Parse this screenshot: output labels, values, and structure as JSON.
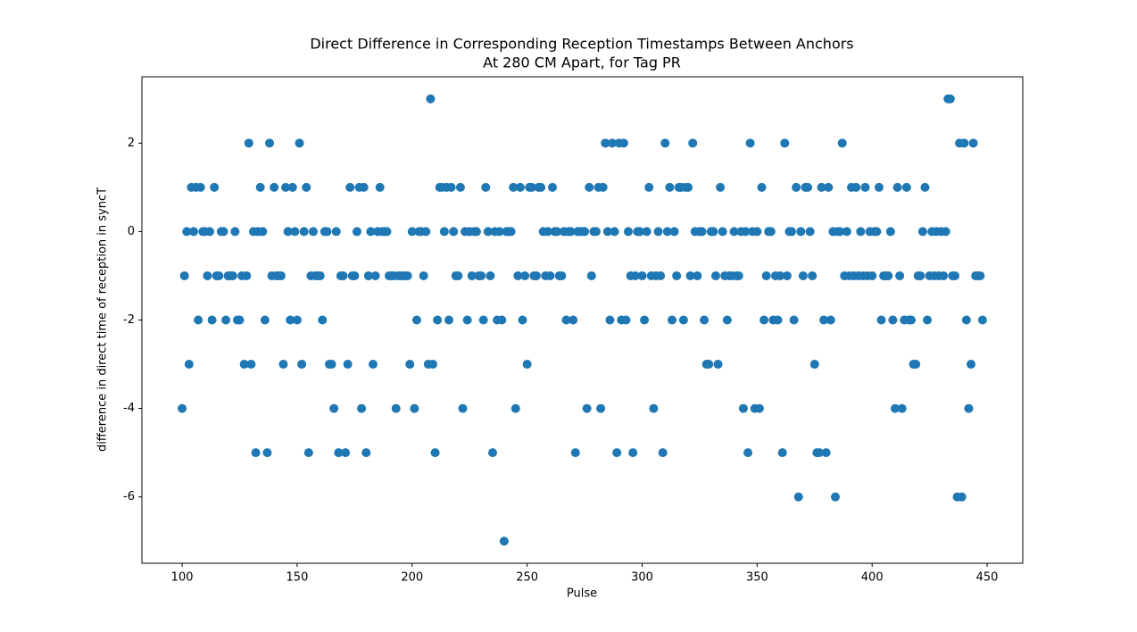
{
  "chart_data": {
    "type": "scatter",
    "title": "Direct Difference in Corresponding Reception Timestamps Between Anchors",
    "subtitle": "At 280 CM Apart, for Tag PR",
    "x_label": "Pulse",
    "y_label": "difference in direct time of reception in syncT",
    "color": "#1f77b4",
    "grid": false,
    "xlim": [
      82.5,
      465.5
    ],
    "ylim": [
      -7.5,
      3.5
    ],
    "xticks": [
      100,
      150,
      200,
      250,
      300,
      350,
      400,
      450
    ],
    "yticks": [
      -6,
      -4,
      -2,
      0,
      2
    ],
    "x": [
      100,
      101,
      102,
      103,
      104,
      105,
      106,
      107,
      108,
      109,
      110,
      111,
      112,
      113,
      114,
      115,
      116,
      117,
      118,
      119,
      120,
      121,
      122,
      123,
      124,
      125,
      126,
      127,
      128,
      129,
      130,
      131,
      132,
      133,
      134,
      135,
      136,
      137,
      138,
      139,
      140,
      141,
      142,
      143,
      144,
      145,
      146,
      147,
      148,
      149,
      150,
      151,
      152,
      153,
      154,
      155,
      156,
      157,
      158,
      159,
      160,
      161,
      162,
      163,
      164,
      165,
      166,
      167,
      168,
      169,
      170,
      171,
      172,
      173,
      174,
      175,
      176,
      177,
      178,
      179,
      180,
      181,
      182,
      183,
      184,
      185,
      186,
      187,
      188,
      189,
      190,
      191,
      192,
      193,
      194,
      195,
      196,
      197,
      198,
      199,
      200,
      201,
      202,
      203,
      204,
      205,
      206,
      207,
      208,
      209,
      210,
      211,
      212,
      213,
      214,
      215,
      216,
      217,
      218,
      219,
      220,
      221,
      222,
      223,
      224,
      225,
      226,
      227,
      228,
      229,
      230,
      231,
      232,
      233,
      234,
      235,
      236,
      237,
      238,
      239,
      240,
      241,
      242,
      243,
      244,
      245,
      246,
      247,
      248,
      249,
      250,
      251,
      252,
      253,
      254,
      255,
      256,
      257,
      258,
      259,
      260,
      261,
      262,
      263,
      264,
      265,
      266,
      267,
      268,
      269,
      270,
      271,
      272,
      273,
      274,
      275,
      276,
      277,
      278,
      279,
      280,
      281,
      282,
      283,
      284,
      285,
      286,
      287,
      288,
      289,
      290,
      291,
      292,
      293,
      294,
      295,
      296,
      297,
      298,
      299,
      300,
      301,
      302,
      303,
      304,
      305,
      306,
      307,
      308,
      309,
      310,
      311,
      312,
      313,
      314,
      315,
      316,
      317,
      318,
      319,
      320,
      321,
      322,
      323,
      324,
      325,
      326,
      327,
      328,
      329,
      330,
      331,
      332,
      333,
      334,
      335,
      336,
      337,
      338,
      339,
      340,
      341,
      342,
      343,
      344,
      345,
      346,
      347,
      348,
      349,
      350,
      351,
      352,
      353,
      354,
      355,
      356,
      357,
      358,
      359,
      360,
      361,
      362,
      363,
      364,
      365,
      366,
      367,
      368,
      369,
      370,
      371,
      372,
      373,
      374,
      375,
      376,
      377,
      378,
      379,
      380,
      381,
      382,
      383,
      384,
      385,
      386,
      387,
      388,
      389,
      390,
      391,
      392,
      393,
      394,
      395,
      396,
      397,
      398,
      399,
      400,
      401,
      402,
      403,
      404,
      405,
      406,
      407,
      408,
      409,
      410,
      411,
      412,
      413,
      414,
      415,
      416,
      417,
      418,
      419,
      420,
      421,
      422,
      423,
      424,
      425,
      426,
      427,
      428,
      429,
      430,
      431,
      432,
      433,
      434,
      435,
      436,
      437,
      438,
      439,
      440,
      441,
      442,
      443,
      444,
      445,
      446,
      447,
      448
    ],
    "values": [
      -4,
      -1,
      0,
      -3,
      1,
      0,
      1,
      -2,
      1,
      0,
      0,
      -1,
      0,
      -2,
      1,
      -1,
      -1,
      0,
      0,
      -2,
      -1,
      -1,
      -1,
      0,
      -2,
      -2,
      -1,
      -3,
      -1,
      2,
      -3,
      0,
      -5,
      0,
      1,
      0,
      -2,
      -5,
      2,
      -1,
      1,
      -1,
      -1,
      -1,
      -3,
      1,
      0,
      -2,
      1,
      0,
      -2,
      2,
      -3,
      0,
      1,
      -5,
      -1,
      0,
      -1,
      -1,
      -1,
      -2,
      0,
      0,
      -3,
      -3,
      -4,
      0,
      -5,
      -1,
      -1,
      -5,
      -3,
      1,
      -1,
      -1,
      0,
      1,
      -4,
      1,
      -5,
      -1,
      0,
      -3,
      -1,
      0,
      1,
      0,
      0,
      0,
      -1,
      -1,
      -1,
      -4,
      -1,
      -1,
      -1,
      -1,
      -1,
      -3,
      0,
      -4,
      -2,
      0,
      0,
      -1,
      0,
      -3,
      3,
      -3,
      -5,
      -2,
      1,
      1,
      0,
      1,
      -2,
      1,
      0,
      -1,
      -1,
      1,
      -4,
      0,
      -2,
      0,
      -1,
      0,
      0,
      -1,
      -1,
      -2,
      1,
      0,
      -1,
      -5,
      0,
      -2,
      0,
      -2,
      -7,
      0,
      0,
      0,
      1,
      -4,
      -1,
      1,
      -2,
      -1,
      -3,
      1,
      1,
      -1,
      -1,
      1,
      1,
      0,
      -1,
      0,
      -1,
      1,
      0,
      0,
      -1,
      -1,
      0,
      -2,
      0,
      0,
      -2,
      -5,
      0,
      0,
      0,
      0,
      -4,
      1,
      -1,
      0,
      0,
      1,
      -4,
      1,
      2,
      0,
      -2,
      2,
      0,
      -5,
      2,
      -2,
      2,
      -2,
      0,
      -1,
      -5,
      -1,
      0,
      0,
      -1,
      -2,
      0,
      1,
      -1,
      -4,
      -1,
      0,
      -1,
      -5,
      2,
      0,
      1,
      -2,
      0,
      -1,
      1,
      1,
      -2,
      1,
      1,
      -1,
      2,
      0,
      -1,
      0,
      0,
      -2,
      -3,
      -3,
      0,
      0,
      -1,
      -3,
      1,
      0,
      -1,
      -2,
      -1,
      -1,
      0,
      -1,
      -1,
      0,
      -4,
      0,
      -5,
      2,
      0,
      -4,
      0,
      -4,
      1,
      -2,
      -1,
      0,
      0,
      -2,
      -1,
      -2,
      -1,
      -5,
      2,
      -1,
      0,
      0,
      -2,
      1,
      -6,
      0,
      -1,
      1,
      1,
      0,
      -1,
      -3,
      -5,
      -5,
      1,
      -2,
      -5,
      1,
      -2,
      0,
      -6,
      0,
      0,
      2,
      -1,
      0,
      -1,
      1,
      -1,
      1,
      -1,
      0,
      -1,
      1,
      -1,
      0,
      -1,
      0,
      0,
      1,
      -2,
      -1,
      -1,
      -1,
      0,
      -2,
      -4,
      1,
      -1,
      -4,
      -2,
      1,
      -2,
      -2,
      -3,
      -3,
      -1,
      -1,
      0,
      1,
      -2,
      -1,
      0,
      -1,
      0,
      -1,
      0,
      -1,
      0,
      3,
      3,
      -1,
      -1,
      -6,
      2,
      -6,
      2,
      -2,
      -4,
      -3,
      2,
      -1,
      -1,
      -1,
      -2
    ]
  }
}
